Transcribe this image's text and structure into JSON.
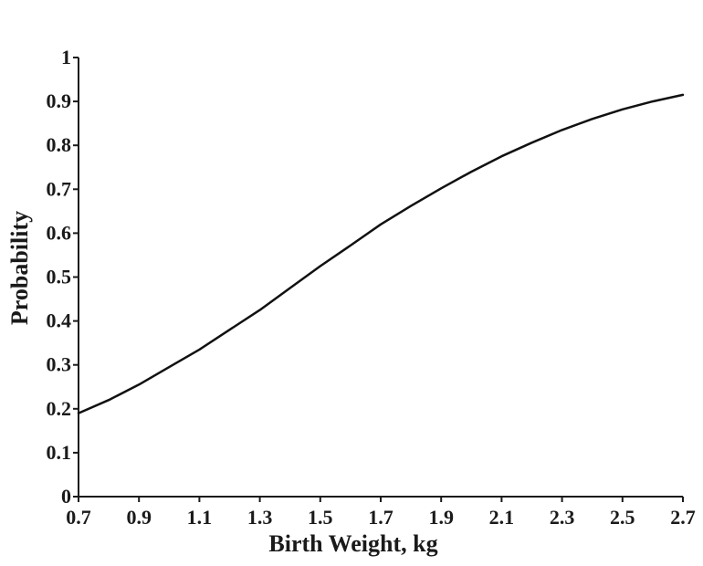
{
  "chart_data": {
    "type": "line",
    "title": "",
    "xlabel": "Birth Weight, kg",
    "ylabel": "Probability",
    "xlim": [
      0.7,
      2.7
    ],
    "ylim": [
      0,
      1
    ],
    "xticks": [
      "0.7",
      "0.9",
      "1.1",
      "1.3",
      "1.5",
      "1.7",
      "1.9",
      "2.1",
      "2.3",
      "2.5",
      "2.7"
    ],
    "yticks": [
      "0",
      "0.1",
      "0.2",
      "0.3",
      "0.4",
      "0.5",
      "0.6",
      "0.7",
      "0.8",
      "0.9",
      "1"
    ],
    "grid": false,
    "legend": "none",
    "series": [
      {
        "x": [
          0.7,
          0.8,
          0.9,
          1.0,
          1.1,
          1.2,
          1.3,
          1.4,
          1.5,
          1.6,
          1.7,
          1.8,
          1.9,
          2.0,
          2.1,
          2.2,
          2.3,
          2.4,
          2.5,
          2.6,
          2.7
        ],
        "y": [
          0.19,
          0.22,
          0.255,
          0.295,
          0.335,
          0.38,
          0.425,
          0.475,
          0.525,
          0.572,
          0.62,
          0.662,
          0.702,
          0.74,
          0.775,
          0.806,
          0.835,
          0.86,
          0.882,
          0.9,
          0.915
        ]
      }
    ],
    "color": "#111111"
  }
}
